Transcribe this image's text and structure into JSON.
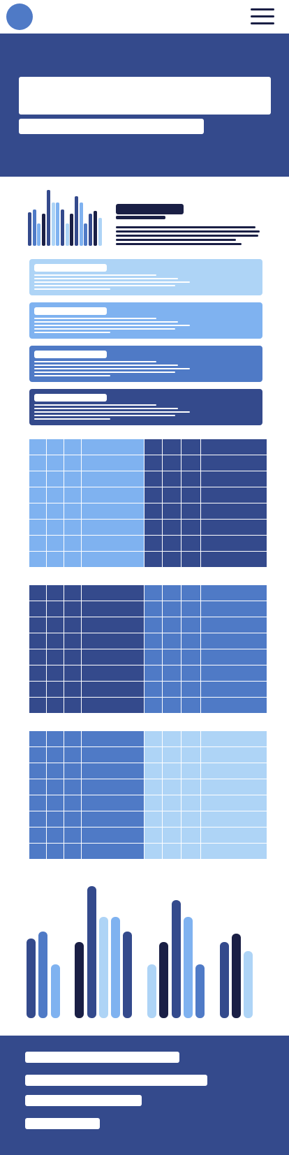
{
  "colors": {
    "navy": "#344a8c",
    "dark": "#1a1f45",
    "mid": "#4f7ac6",
    "light": "#7fb2f0",
    "pale": "#aed4f6",
    "white": "#ffffff",
    "avatar": "#4f7ac6"
  },
  "icons": {
    "menu": "hamburger-menu-icon",
    "avatar": "avatar-circle"
  },
  "mini_chart": {
    "type": "bar",
    "values": [
      48,
      52,
      32,
      46,
      80,
      62,
      62,
      52,
      32,
      46,
      71,
      62,
      32,
      46,
      50,
      40
    ],
    "series_colors": [
      "navy",
      "mid",
      "light",
      "dark",
      "navy",
      "pale",
      "light",
      "navy",
      "pale",
      "dark",
      "navy",
      "light",
      "mid",
      "navy",
      "dark",
      "pale"
    ]
  },
  "cards": [
    {
      "color": "pale"
    },
    {
      "color": "light"
    },
    {
      "color": "mid"
    },
    {
      "color": "navy"
    }
  ],
  "tables": [
    {
      "left_color": "light",
      "right_color": "navy"
    },
    {
      "left_color": "navy",
      "right_color": "mid"
    },
    {
      "left_color": "mid",
      "right_color": "pale"
    }
  ],
  "big_chart": {
    "type": "bar",
    "values": [
      114,
      124,
      77,
      0,
      109,
      189,
      145,
      145,
      124,
      0,
      77,
      109,
      169,
      145,
      77,
      0,
      109,
      121,
      96
    ],
    "series_colors": [
      "navy",
      "mid",
      "light",
      "none",
      "dark",
      "navy",
      "pale",
      "light",
      "navy",
      "none",
      "pale",
      "dark",
      "navy",
      "light",
      "mid",
      "none",
      "navy",
      "dark",
      "pale"
    ]
  }
}
